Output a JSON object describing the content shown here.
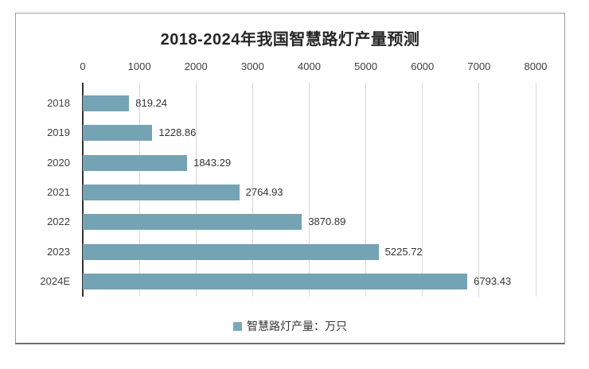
{
  "figure": {
    "title": "2018-2024年我国智慧路灯产量预测"
  },
  "legend": {
    "label": "智慧路灯产量：万只"
  },
  "colors": {
    "bar": "#74a3b4",
    "legend_marker": "#7ca8ba",
    "gridline": "#d9d9d9",
    "axis_line": "#333333",
    "text": "#3f3f3f",
    "border": "#9c9c9c"
  },
  "chart_data": {
    "type": "bar",
    "orientation": "horizontal",
    "title": "2018-2024年我国智慧路灯产量预测",
    "categories": [
      "2018",
      "2019",
      "2020",
      "2021",
      "2022",
      "2023",
      "2024E"
    ],
    "values": [
      819.24,
      1228.86,
      1843.29,
      2764.93,
      3870.89,
      5225.72,
      6793.43
    ],
    "value_labels": [
      "819.24",
      "1228.86",
      "1843.29",
      "2764.93",
      "3870.89",
      "5225.72",
      "6793.43"
    ],
    "series_name": "智慧路灯产量：万只",
    "unit": "万只",
    "xlim": [
      0,
      8000
    ],
    "x_ticks": [
      0,
      1000,
      2000,
      3000,
      4000,
      5000,
      6000,
      7000,
      8000
    ],
    "grid": true,
    "axis_position": "top",
    "legend_position": "bottom"
  }
}
